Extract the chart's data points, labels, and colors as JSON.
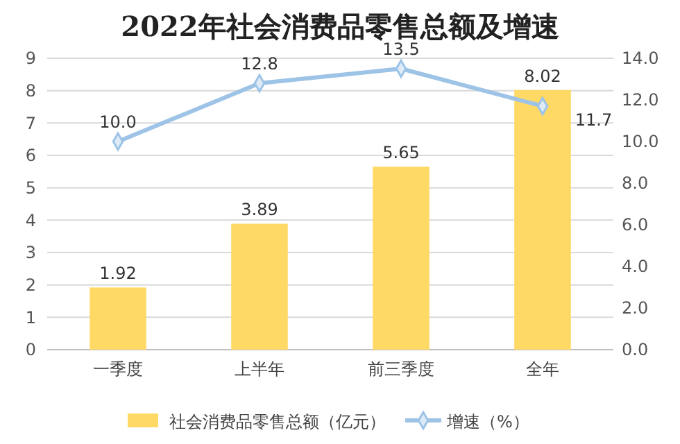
{
  "chart_data": {
    "type": "bar",
    "title": "2022年社会消费品零售总额及增速",
    "categories": [
      "一季度",
      "上半年",
      "前三季度",
      "全年"
    ],
    "series": [
      {
        "name": "社会消费品零售总额（亿元）",
        "color": "#ffd966",
        "values": [
          1.92,
          3.89,
          5.65,
          8.02
        ],
        "value_labels": [
          "1.92",
          "3.89",
          "5.65",
          "8.02"
        ]
      },
      {
        "name": "增速（%）",
        "type": "line",
        "axis": "y2",
        "color": "#9dc3e6",
        "values": [
          10.0,
          12.8,
          13.5,
          11.7
        ],
        "value_labels": [
          "10.0",
          "12.8",
          "13.5",
          "11.7"
        ],
        "marker": "diamond"
      }
    ],
    "ylim": [
      0,
      9
    ],
    "yticks": [
      0,
      1,
      2,
      3,
      4,
      5,
      6,
      7,
      8,
      9
    ],
    "y2lim": [
      0,
      14
    ],
    "y2ticks": [
      {
        "value": 0,
        "label": "0.0"
      },
      {
        "value": 2,
        "label": "2.0"
      },
      {
        "value": 4,
        "label": "4.0"
      },
      {
        "value": 6,
        "label": "6.0"
      },
      {
        "value": 8,
        "label": "8.0"
      },
      {
        "value": 10,
        "label": "10.0"
      },
      {
        "value": 12,
        "label": "12.0"
      },
      {
        "value": 14,
        "label": "14.0"
      }
    ],
    "grid": "y",
    "legend": "bottom"
  }
}
